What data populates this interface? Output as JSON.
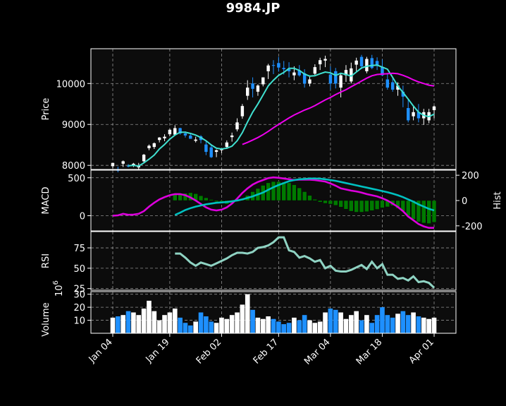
{
  "title": "9984.JP",
  "chart_data": {
    "type": "candlestick",
    "title": "9984.JP",
    "x_tick_labels": [
      "Jan 04",
      "Jan 19",
      "Feb 02",
      "Feb 17",
      "Mar 04",
      "Mar 18",
      "Apr 01"
    ],
    "x_tick_index": [
      0,
      11,
      21,
      32,
      42,
      52,
      62
    ],
    "n_points": 63,
    "colors": {
      "up": "#ffffff",
      "down": "#1e90ff",
      "mav_short": "#40e0d0",
      "mav_long": "#ee00ee",
      "macd": "#00c0c0",
      "signal": "#dd00dd",
      "hist": "#007a00",
      "rsi": "#8fd3c3",
      "background": "#0c0c0c"
    },
    "price": {
      "ylabel": "Price",
      "yticks": [
        8000,
        9000,
        10000
      ],
      "ylim": [
        7900,
        10850
      ],
      "open": [
        7980,
        7910,
        8040,
        7990,
        8010,
        7950,
        8100,
        8420,
        8450,
        8620,
        8660,
        8760,
        8750,
        8910,
        8780,
        8730,
        8600,
        8710,
        8510,
        8440,
        8330,
        8370,
        8450,
        8690,
        8880,
        9200,
        9700,
        10000,
        9800,
        9980,
        10300,
        10450,
        10500,
        10380,
        10350,
        10200,
        10320,
        10250,
        10000,
        10240,
        10470,
        10560,
        10220,
        10300,
        9900,
        10200,
        10050,
        10460,
        10650,
        10300,
        10620,
        10550,
        10400,
        10100,
        10030,
        9850,
        9800,
        9400,
        9200,
        9300,
        9150,
        9100,
        9350
      ],
      "high": [
        8050,
        7970,
        8120,
        8030,
        8060,
        8060,
        8280,
        8510,
        8560,
        8690,
        8760,
        8890,
        8980,
        8920,
        8830,
        8770,
        8700,
        8740,
        8600,
        8490,
        8390,
        8420,
        8610,
        8800,
        9150,
        9500,
        10080,
        10150,
        9980,
        10150,
        10480,
        10570,
        10650,
        10550,
        10520,
        10420,
        10450,
        10350,
        10170,
        10470,
        10630,
        10680,
        10420,
        10380,
        10250,
        10450,
        10510,
        10630,
        10700,
        10650,
        10700,
        10640,
        10590,
        10260,
        10130,
        10030,
        9950,
        9620,
        9450,
        9500,
        9380,
        9380,
        9460
      ],
      "low": [
        7930,
        7830,
        7960,
        7950,
        7960,
        7900,
        8050,
        8370,
        8400,
        8560,
        8590,
        8710,
        8730,
        8750,
        8680,
        8650,
        8560,
        8540,
        8250,
        8180,
        8200,
        8300,
        8400,
        8580,
        8830,
        9140,
        9600,
        9660,
        9700,
        9930,
        10110,
        10230,
        10290,
        10220,
        10150,
        10080,
        10170,
        9900,
        9930,
        10210,
        10330,
        10400,
        9850,
        9880,
        9660,
        10040,
        10000,
        10300,
        10350,
        10250,
        10350,
        10330,
        10180,
        9850,
        9800,
        9700,
        9420,
        9050,
        9100,
        9050,
        8990,
        9030,
        9150
      ],
      "close": [
        8060,
        7870,
        8100,
        7980,
        8040,
        8000,
        8260,
        8480,
        8540,
        8680,
        8700,
        8870,
        8910,
        8780,
        8730,
        8650,
        8630,
        8620,
        8330,
        8200,
        8370,
        8410,
        8560,
        8730,
        9050,
        9450,
        9900,
        9870,
        9950,
        10150,
        10440,
        10440,
        10390,
        10350,
        10300,
        10270,
        10200,
        10000,
        10100,
        10400,
        10570,
        10600,
        10000,
        10000,
        10200,
        10330,
        10370,
        10560,
        10420,
        10600,
        10380,
        10450,
        10200,
        9900,
        9850,
        9950,
        9680,
        9100,
        9300,
        9150,
        9300,
        9300,
        9440
      ],
      "mav_short": [
        null,
        null,
        null,
        7990,
        8000,
        7985,
        8060,
        8150,
        8250,
        8400,
        8510,
        8640,
        8740,
        8810,
        8810,
        8780,
        8740,
        8680,
        8600,
        8500,
        8420,
        8400,
        8420,
        8470,
        8600,
        8800,
        9060,
        9300,
        9500,
        9720,
        9940,
        10080,
        10200,
        10270,
        10370,
        10370,
        10320,
        10230,
        10180,
        10190,
        10240,
        10280,
        10260,
        10200,
        10250,
        10220,
        10180,
        10280,
        10380,
        10420,
        10440,
        10450,
        10400,
        10350,
        10150,
        9940,
        9780,
        9620,
        9450,
        9300,
        9220,
        9190,
        9250
      ],
      "mav_long": [
        null,
        null,
        null,
        null,
        null,
        null,
        null,
        null,
        null,
        null,
        null,
        null,
        null,
        null,
        null,
        null,
        null,
        null,
        null,
        null,
        null,
        null,
        null,
        null,
        null,
        8510,
        8560,
        8620,
        8680,
        8750,
        8830,
        8920,
        9000,
        9080,
        9160,
        9230,
        9290,
        9350,
        9400,
        9460,
        9530,
        9600,
        9660,
        9730,
        9790,
        9850,
        9920,
        9990,
        10060,
        10130,
        10190,
        10220,
        10230,
        10240,
        10250,
        10240,
        10200,
        10150,
        10090,
        10040,
        10000,
        9960,
        9940
      ]
    },
    "macd": {
      "ylabel": "MACD",
      "yticks": [
        0,
        500
      ],
      "ylim": [
        -200,
        600
      ],
      "hist_ylabel": "Hist",
      "hist_yticks": [
        -200,
        0,
        200
      ],
      "hist_ylim": [
        -240,
        240
      ],
      "macd": [
        0,
        5,
        25,
        12,
        15,
        25,
        60,
        120,
        170,
        215,
        245,
        270,
        285,
        285,
        270,
        240,
        200,
        155,
        110,
        80,
        70,
        80,
        110,
        160,
        225,
        300,
        360,
        410,
        445,
        470,
        495,
        505,
        500,
        490,
        480,
        470,
        475,
        475,
        475,
        470,
        460,
        450,
        425,
        395,
        360,
        345,
        330,
        320,
        305,
        285,
        270,
        255,
        230,
        200,
        160,
        115,
        60,
        -10,
        -60,
        -110,
        -140,
        -160,
        -160
      ],
      "signal": [
        null,
        null,
        null,
        null,
        null,
        null,
        null,
        null,
        null,
        null,
        null,
        null,
        10,
        40,
        75,
        100,
        120,
        135,
        150,
        160,
        170,
        175,
        180,
        190,
        200,
        215,
        235,
        255,
        280,
        305,
        340,
        375,
        405,
        430,
        455,
        470,
        480,
        485,
        490,
        490,
        487,
        480,
        470,
        460,
        445,
        430,
        415,
        400,
        385,
        370,
        355,
        340,
        325,
        310,
        290,
        270,
        245,
        215,
        185,
        150,
        120,
        90,
        70
      ],
      "hist": [
        null,
        null,
        null,
        null,
        null,
        null,
        null,
        null,
        null,
        null,
        null,
        null,
        48,
        52,
        58,
        62,
        54,
        38,
        22,
        8,
        -10,
        -22,
        -28,
        -22,
        -8,
        12,
        40,
        70,
        95,
        120,
        140,
        150,
        150,
        145,
        140,
        125,
        100,
        70,
        40,
        10,
        -12,
        -22,
        -28,
        -38,
        -52,
        -68,
        -84,
        -92,
        -92,
        -88,
        -80,
        -70,
        -58,
        -50,
        -40,
        -62,
        -85,
        -122,
        -148,
        -168,
        -178,
        -182,
        -172
      ]
    },
    "rsi": {
      "ylabel": "RSI",
      "yticks": [
        25,
        50,
        75
      ],
      "ylim": [
        23,
        95
      ],
      "values": [
        null,
        null,
        null,
        null,
        null,
        null,
        null,
        null,
        null,
        null,
        null,
        null,
        68,
        68,
        63,
        57,
        53,
        57,
        55,
        53,
        56,
        59,
        62,
        66,
        69,
        69,
        68,
        70,
        75,
        76,
        78,
        82,
        88,
        88,
        72,
        70,
        63,
        65,
        62,
        58,
        60,
        50,
        53,
        47,
        46,
        46,
        48,
        51,
        54,
        49,
        58,
        50,
        55,
        42,
        42,
        37,
        38,
        35,
        40,
        33,
        34,
        32,
        26
      ]
    },
    "volume": {
      "ylabel": "Volume",
      "multiplier": "10^6",
      "yticks": [
        10,
        20,
        30
      ],
      "ylim": [
        0,
        32
      ],
      "values": [
        12,
        13,
        14,
        17,
        16,
        14,
        19,
        25,
        17,
        10,
        14,
        16,
        19,
        12,
        8,
        6,
        9,
        16,
        13,
        9,
        8,
        12,
        11,
        14,
        16,
        22,
        30,
        18,
        12,
        11,
        13,
        11,
        9,
        7,
        8,
        12,
        10,
        14,
        10,
        8,
        9,
        16,
        19,
        18,
        16,
        11,
        14,
        17,
        10,
        14,
        8,
        14,
        20,
        14,
        12,
        15,
        17,
        14,
        16,
        13,
        12,
        11,
        12
      ]
    }
  }
}
